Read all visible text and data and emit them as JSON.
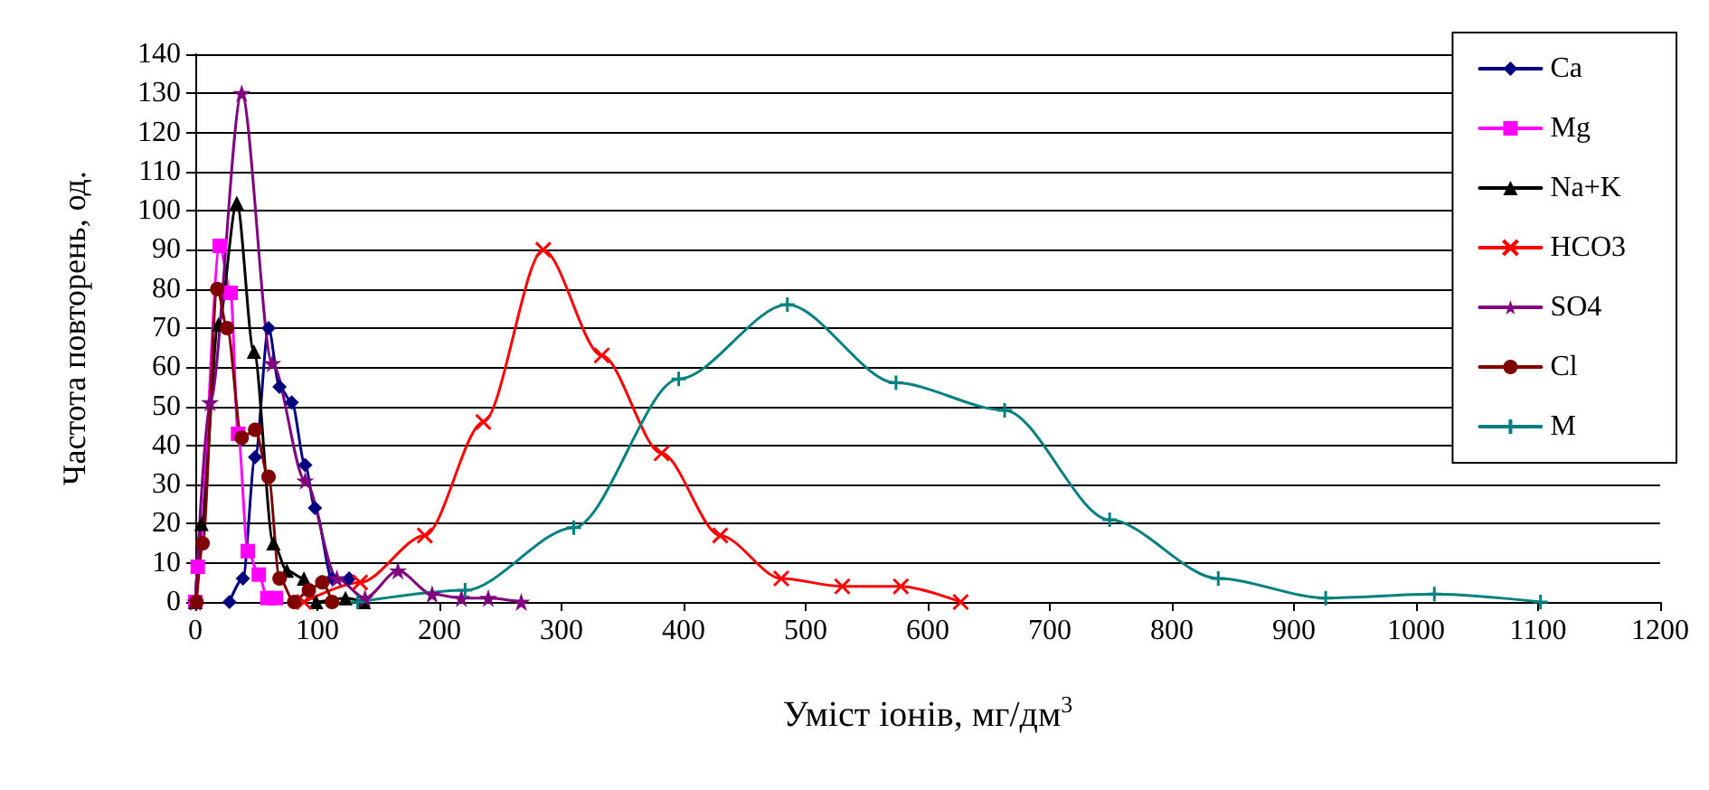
{
  "chart_data": {
    "type": "line",
    "xlabel": "Уміст іонів, мг/дм$^{3}$",
    "ylabel": "Частота повторень, од.",
    "xlim": [
      0,
      1200
    ],
    "xticks": [
      0,
      100,
      200,
      300,
      400,
      500,
      600,
      700,
      800,
      900,
      1000,
      1100,
      1200
    ],
    "ylim": [
      0,
      140
    ],
    "yticks": [
      0,
      10,
      20,
      30,
      40,
      50,
      60,
      70,
      80,
      90,
      100,
      110,
      120,
      130,
      140
    ],
    "grid": "y",
    "legend": "top right",
    "series": [
      {
        "name": "Ca",
        "color": "#000080",
        "marker": "diamond",
        "x": [
          28,
          39,
          49,
          60,
          69,
          79,
          90,
          98,
          112,
          126
        ],
        "values": [
          0,
          6,
          37,
          70,
          55,
          51,
          35,
          24,
          6,
          6
        ]
      },
      {
        "name": "Mg",
        "color": "#ff00ff",
        "marker": "square",
        "x": [
          0,
          2,
          20,
          29,
          35,
          43,
          52,
          59,
          66
        ],
        "values": [
          0,
          9,
          91,
          79,
          43,
          13,
          7,
          1,
          1
        ]
      },
      {
        "name": "Na+K",
        "color": "#000000",
        "marker": "triangle",
        "x": [
          0,
          5,
          19,
          34,
          48,
          64,
          75,
          89,
          99,
          123,
          138
        ],
        "values": [
          0,
          20,
          71,
          102,
          64,
          15,
          8,
          6,
          0,
          1,
          0
        ]
      },
      {
        "name": "HCO3",
        "color": "#ff0000",
        "marker": "cross",
        "x": [
          89,
          135,
          188,
          236,
          285,
          333,
          382,
          430,
          480,
          530,
          578,
          627
        ],
        "values": [
          0,
          5,
          17,
          46,
          90,
          63,
          38,
          17,
          6,
          4,
          4,
          0
        ]
      },
      {
        "name": "SO4",
        "color": "#800080",
        "marker": "star",
        "x": [
          0,
          12,
          38,
          63,
          90,
          116,
          139,
          166,
          194,
          218,
          240,
          267
        ],
        "values": [
          0,
          51,
          130,
          61,
          31,
          6,
          1,
          8,
          2,
          1,
          1,
          0
        ]
      },
      {
        "name": "Cl",
        "color": "#800000",
        "marker": "circle",
        "x": [
          1,
          6,
          18,
          26,
          38,
          49,
          60,
          69,
          81,
          93,
          104,
          112
        ],
        "values": [
          0,
          15,
          80,
          70,
          42,
          44,
          32,
          6,
          0,
          3,
          5,
          0
        ]
      },
      {
        "name": "M",
        "color": "#008080",
        "marker": "plus",
        "x": [
          133,
          221,
          310,
          396,
          485,
          574,
          663,
          749,
          838,
          926,
          1015,
          1102
        ],
        "values": [
          0,
          3,
          19,
          57,
          76,
          56,
          49,
          21,
          6,
          1,
          2,
          0
        ]
      }
    ]
  }
}
